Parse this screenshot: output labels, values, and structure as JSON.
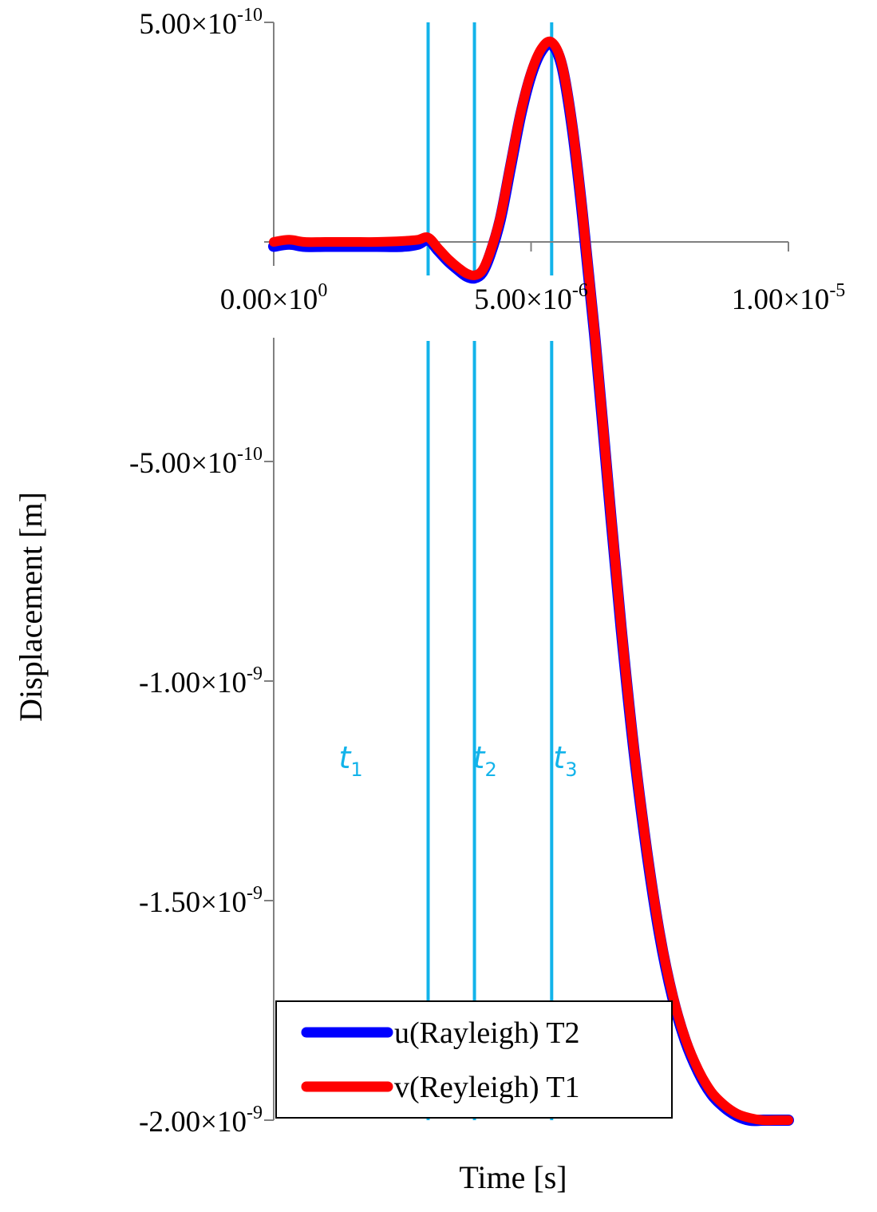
{
  "chart_data": {
    "type": "line",
    "title": "",
    "xlabel": "Time [s]",
    "ylabel": "Displacement [m]",
    "xlim": [
      0,
      1e-05
    ],
    "ylim": [
      -2e-09,
      5e-10
    ],
    "grid": false,
    "legend_position": "bottom-center",
    "x_ticks": [
      {
        "value": 0,
        "mantissa": "0.00",
        "exp": "0"
      },
      {
        "value": 5e-06,
        "mantissa": "5.00",
        "exp": "-6"
      },
      {
        "value": 1e-05,
        "mantissa": "1.00",
        "exp": "-5"
      }
    ],
    "y_ticks": [
      {
        "value": 5e-10,
        "mantissa": "5.00",
        "exp": "-10"
      },
      {
        "value": -5e-10,
        "mantissa": "-5.00",
        "exp": "-10"
      },
      {
        "value": -1e-09,
        "mantissa": "-1.00",
        "exp": "-9"
      },
      {
        "value": -1.5e-09,
        "mantissa": "-1.50",
        "exp": "-9"
      },
      {
        "value": -2e-09,
        "mantissa": "-2.00",
        "exp": "-9"
      }
    ],
    "markers": [
      {
        "label": "t",
        "sub": "1",
        "x": 3e-06
      },
      {
        "label": "t",
        "sub": "2",
        "x": 3.9e-06
      },
      {
        "label": "t",
        "sub": "3",
        "x": 5.4e-06
      }
    ],
    "marker_color": "#12b3ea",
    "series": [
      {
        "name": "u(Rayleigh) T2",
        "color": "#0000ff",
        "x": [
          0,
          3e-07,
          6e-07,
          1e-06,
          1.5e-06,
          2e-06,
          2.5e-06,
          2.8e-06,
          3e-06,
          3.2e-06,
          3.4e-06,
          3.6e-06,
          3.75e-06,
          3.9e-06,
          4.05e-06,
          4.2e-06,
          4.4e-06,
          4.6e-06,
          4.8e-06,
          5e-06,
          5.2e-06,
          5.4e-06,
          5.6e-06,
          5.8e-06,
          6e-06,
          6.25e-06,
          6.5e-06,
          6.75e-06,
          7e-06,
          7.25e-06,
          7.5e-06,
          7.75e-06,
          8e-06,
          8.25e-06,
          8.5e-06,
          8.75e-06,
          9e-06,
          9.25e-06,
          9.5e-06,
          9.75e-06,
          1e-05
        ],
        "y": [
          -1e-11,
          -5e-12,
          -1e-11,
          -1e-11,
          -1e-11,
          -1e-11,
          -1e-11,
          -5e-12,
          5e-12,
          -2e-11,
          -4.5e-11,
          -6.5e-11,
          -7.8e-11,
          -8.2e-11,
          -7e-11,
          -3e-11,
          5e-11,
          1.7e-10,
          2.9e-10,
          3.8e-10,
          4.35e-10,
          4.5e-10,
          4e-10,
          2.6e-10,
          6e-11,
          -2.3e-10,
          -5.6e-10,
          -8.8e-10,
          -1.16e-09,
          -1.39e-09,
          -1.58e-09,
          -1.72e-09,
          -1.82e-09,
          -1.89e-09,
          -1.94e-09,
          -1.97e-09,
          -1.99e-09,
          -2e-09,
          -2e-09,
          -2e-09,
          -2e-09
        ]
      },
      {
        "name": "v(Reyleigh) T1",
        "color": "#ff0000",
        "x": [
          0,
          3e-07,
          6e-07,
          1e-06,
          1.5e-06,
          2e-06,
          2.5e-06,
          2.8e-06,
          3e-06,
          3.2e-06,
          3.4e-06,
          3.6e-06,
          3.75e-06,
          3.9e-06,
          4.05e-06,
          4.2e-06,
          4.4e-06,
          4.6e-06,
          4.8e-06,
          5e-06,
          5.2e-06,
          5.4e-06,
          5.6e-06,
          5.8e-06,
          6e-06,
          6.25e-06,
          6.5e-06,
          6.75e-06,
          7e-06,
          7.25e-06,
          7.5e-06,
          7.75e-06,
          8e-06,
          8.25e-06,
          8.5e-06,
          8.75e-06,
          9e-06,
          9.25e-06,
          9.5e-06,
          9.75e-06,
          1e-05
        ],
        "y": [
          0,
          5e-12,
          0,
          0,
          0,
          0,
          2e-12,
          5e-12,
          1e-11,
          -1.5e-11,
          -4e-11,
          -6e-11,
          -7.2e-11,
          -7.6e-11,
          -6.5e-11,
          -2.5e-11,
          5.5e-11,
          1.75e-10,
          2.95e-10,
          3.85e-10,
          4.4e-10,
          4.55e-10,
          4.05e-10,
          2.65e-10,
          6.5e-11,
          -2.25e-10,
          -5.55e-10,
          -8.75e-10,
          -1.155e-09,
          -1.385e-09,
          -1.575e-09,
          -1.715e-09,
          -1.815e-09,
          -1.885e-09,
          -1.935e-09,
          -1.965e-09,
          -1.985e-09,
          -1.995e-09,
          -2e-09,
          -2e-09,
          -2e-09
        ]
      }
    ]
  }
}
